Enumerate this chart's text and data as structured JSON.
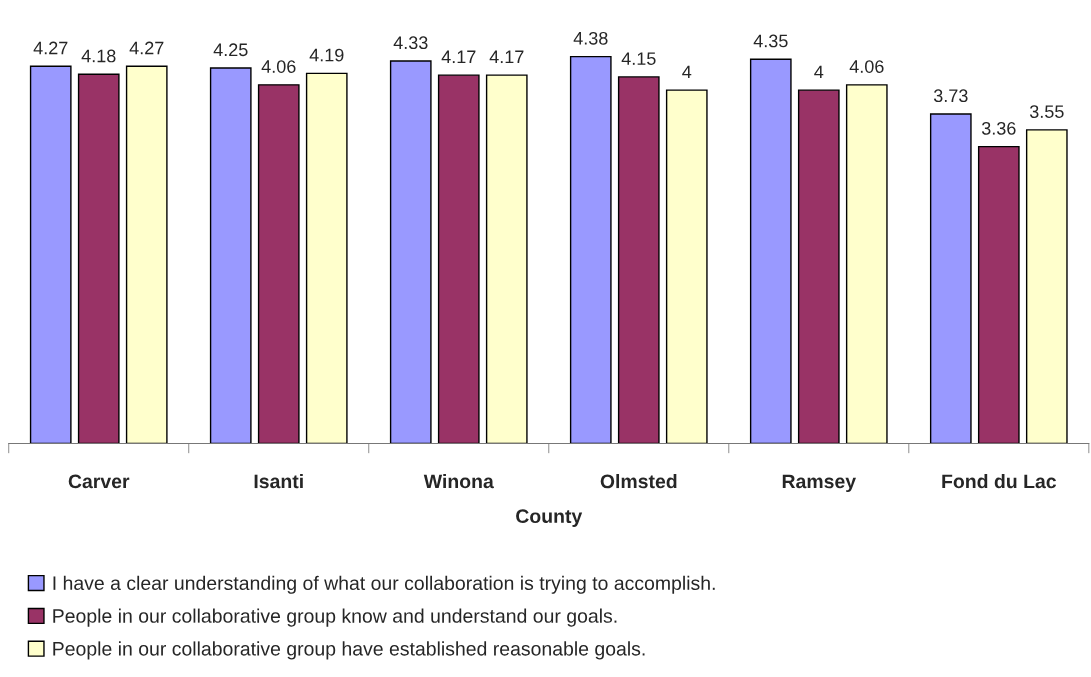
{
  "chart_data": {
    "type": "bar",
    "xlabel": "County",
    "categories": [
      "Carver",
      "Isanti",
      "Winona",
      "Olmsted",
      "Ramsey",
      "Fond du Lac"
    ],
    "series": [
      {
        "name": "I have a clear understanding of what our collaboration is trying to accomplish.",
        "color": "#9999ff",
        "values": [
          4.27,
          4.25,
          4.33,
          4.38,
          4.35,
          3.73
        ]
      },
      {
        "name": "People in our collaborative group know and understand our goals.",
        "color": "#993366",
        "values": [
          4.18,
          4.06,
          4.17,
          4.15,
          4,
          3.36
        ]
      },
      {
        "name": "People in our collaborative group have established reasonable goals.",
        "color": "#ffffcc",
        "values": [
          4.27,
          4.19,
          4.17,
          4,
          4.06,
          3.55
        ]
      }
    ],
    "data_labels": true,
    "grid": false,
    "legend": "bottom",
    "tick_labels": "x"
  }
}
